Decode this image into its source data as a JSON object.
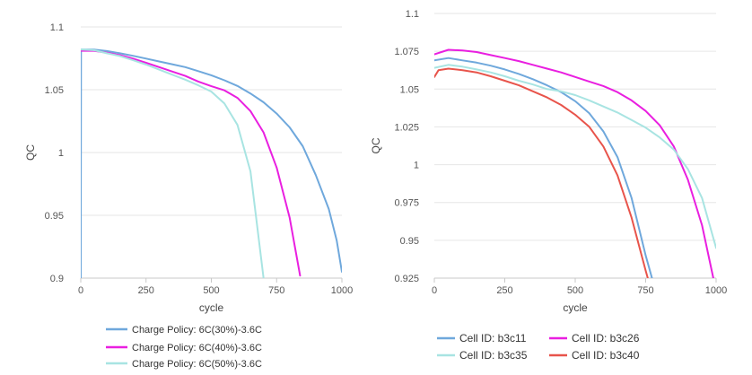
{
  "chart_data": [
    {
      "type": "line",
      "xlabel": "cycle",
      "ylabel": "QC",
      "xlim": [
        0,
        1000
      ],
      "ylim": [
        0.9,
        1.1
      ],
      "x_ticks": [
        "0",
        "250",
        "500",
        "750",
        "1000"
      ],
      "y_ticks": [
        "0.9",
        "0.95",
        "1",
        "1.05",
        "1.1"
      ],
      "legend_position": "bottom",
      "series": [
        {
          "name": "Charge Policy: 6C(30%)-3.6C",
          "color": "#6fa8dc",
          "points": [
            [
              0,
              0.9
            ],
            [
              1,
              1.082
            ],
            [
              50,
              1.082
            ],
            [
              100,
              1.0808
            ],
            [
              150,
              1.079
            ],
            [
              200,
              1.077
            ],
            [
              250,
              1.0748
            ],
            [
              300,
              1.0725
            ],
            [
              350,
              1.0703
            ],
            [
              400,
              1.068
            ],
            [
              450,
              1.0648
            ],
            [
              500,
              1.0615
            ],
            [
              550,
              1.0575
            ],
            [
              600,
              1.053
            ],
            [
              650,
              1.047
            ],
            [
              700,
              1.04
            ],
            [
              750,
              1.031
            ],
            [
              800,
              1.02
            ],
            [
              850,
              1.005
            ],
            [
              900,
              0.982
            ],
            [
              950,
              0.955
            ],
            [
              980,
              0.93
            ],
            [
              1000,
              0.905
            ]
          ]
        },
        {
          "name": "Charge Policy: 6C(40%)-3.6C",
          "color": "#e91fe0",
          "points": [
            [
              0,
              1.081
            ],
            [
              50,
              1.081
            ],
            [
              100,
              1.0795
            ],
            [
              150,
              1.0775
            ],
            [
              200,
              1.0748
            ],
            [
              250,
              1.0715
            ],
            [
              300,
              1.068
            ],
            [
              350,
              1.0645
            ],
            [
              400,
              1.061
            ],
            [
              450,
              1.0565
            ],
            [
              500,
              1.0528
            ],
            [
              550,
              1.0495
            ],
            [
              600,
              1.0435
            ],
            [
              650,
              1.033
            ],
            [
              700,
              1.016
            ],
            [
              750,
              0.988
            ],
            [
              800,
              0.948
            ],
            [
              840,
              0.902
            ]
          ]
        },
        {
          "name": "Charge Policy: 6C(50%)-3.6C",
          "color": "#a8e4e2",
          "points": [
            [
              0,
              1.082
            ],
            [
              50,
              1.0815
            ],
            [
              100,
              1.079
            ],
            [
              150,
              1.0768
            ],
            [
              200,
              1.0735
            ],
            [
              250,
              1.07
            ],
            [
              300,
              1.066
            ],
            [
              350,
              1.062
            ],
            [
              400,
              1.058
            ],
            [
              450,
              1.0535
            ],
            [
              500,
              1.0485
            ],
            [
              550,
              1.039
            ],
            [
              600,
              1.022
            ],
            [
              650,
              0.985
            ],
            [
              700,
              0.9
            ]
          ]
        }
      ]
    },
    {
      "type": "line",
      "xlabel": "cycle",
      "ylabel": "QC",
      "xlim": [
        0,
        1000
      ],
      "ylim": [
        0.925,
        1.1
      ],
      "x_ticks": [
        "0",
        "250",
        "500",
        "750",
        "1000"
      ],
      "y_ticks": [
        "0.925",
        "0.95",
        "0.975",
        "1",
        "1.025",
        "1.05",
        "1.075",
        "1.1"
      ],
      "legend_position": "bottom",
      "series": [
        {
          "name": "Cell ID: b3c11",
          "color": "#6fa8dc",
          "points": [
            [
              0,
              1.069
            ],
            [
              50,
              1.0705
            ],
            [
              100,
              1.069
            ],
            [
              150,
              1.0675
            ],
            [
              200,
              1.0655
            ],
            [
              250,
              1.063
            ],
            [
              300,
              1.06
            ],
            [
              350,
              1.0565
            ],
            [
              400,
              1.0525
            ],
            [
              450,
              1.048
            ],
            [
              500,
              1.042
            ],
            [
              550,
              1.034
            ],
            [
              600,
              1.022
            ],
            [
              650,
              1.005
            ],
            [
              700,
              0.978
            ],
            [
              750,
              0.94
            ],
            [
              780,
              0.92
            ]
          ]
        },
        {
          "name": "Cell ID: b3c26",
          "color": "#e91fe0",
          "points": [
            [
              0,
              1.073
            ],
            [
              50,
              1.076
            ],
            [
              100,
              1.0755
            ],
            [
              150,
              1.0745
            ],
            [
              200,
              1.0725
            ],
            [
              250,
              1.0705
            ],
            [
              300,
              1.0685
            ],
            [
              350,
              1.066
            ],
            [
              400,
              1.0635
            ],
            [
              450,
              1.061
            ],
            [
              500,
              1.058
            ],
            [
              550,
              1.055
            ],
            [
              600,
              1.052
            ],
            [
              650,
              1.048
            ],
            [
              700,
              1.0425
            ],
            [
              750,
              1.0355
            ],
            [
              800,
              1.026
            ],
            [
              850,
              1.012
            ],
            [
              900,
              0.99
            ],
            [
              950,
              0.96
            ],
            [
              990,
              0.925
            ]
          ]
        },
        {
          "name": "Cell ID: b3c35",
          "color": "#a8e4e2",
          "points": [
            [
              0,
              1.064
            ],
            [
              50,
              1.066
            ],
            [
              100,
              1.0648
            ],
            [
              150,
              1.063
            ],
            [
              200,
              1.061
            ],
            [
              250,
              1.0585
            ],
            [
              300,
              1.0555
            ],
            [
              350,
              1.053
            ],
            [
              400,
              1.05
            ],
            [
              450,
              1.0485
            ],
            [
              500,
              1.046
            ],
            [
              550,
              1.0425
            ],
            [
              600,
              1.0385
            ],
            [
              650,
              1.0345
            ],
            [
              700,
              1.0295
            ],
            [
              750,
              1.0245
            ],
            [
              800,
              1.018
            ],
            [
              850,
              1.01
            ],
            [
              900,
              0.997
            ],
            [
              950,
              0.978
            ],
            [
              1000,
              0.945
            ]
          ]
        },
        {
          "name": "Cell ID: b3c40",
          "color": "#e8544b",
          "points": [
            [
              0,
              1.058
            ],
            [
              15,
              1.0625
            ],
            [
              50,
              1.0635
            ],
            [
              100,
              1.0625
            ],
            [
              150,
              1.061
            ],
            [
              200,
              1.0585
            ],
            [
              250,
              1.0555
            ],
            [
              300,
              1.0525
            ],
            [
              350,
              1.0485
            ],
            [
              400,
              1.0445
            ],
            [
              450,
              1.0395
            ],
            [
              500,
              1.033
            ],
            [
              550,
              1.025
            ],
            [
              600,
              1.012
            ],
            [
              650,
              0.993
            ],
            [
              700,
              0.965
            ],
            [
              750,
              0.93
            ],
            [
              765,
              0.92
            ]
          ]
        }
      ]
    }
  ]
}
